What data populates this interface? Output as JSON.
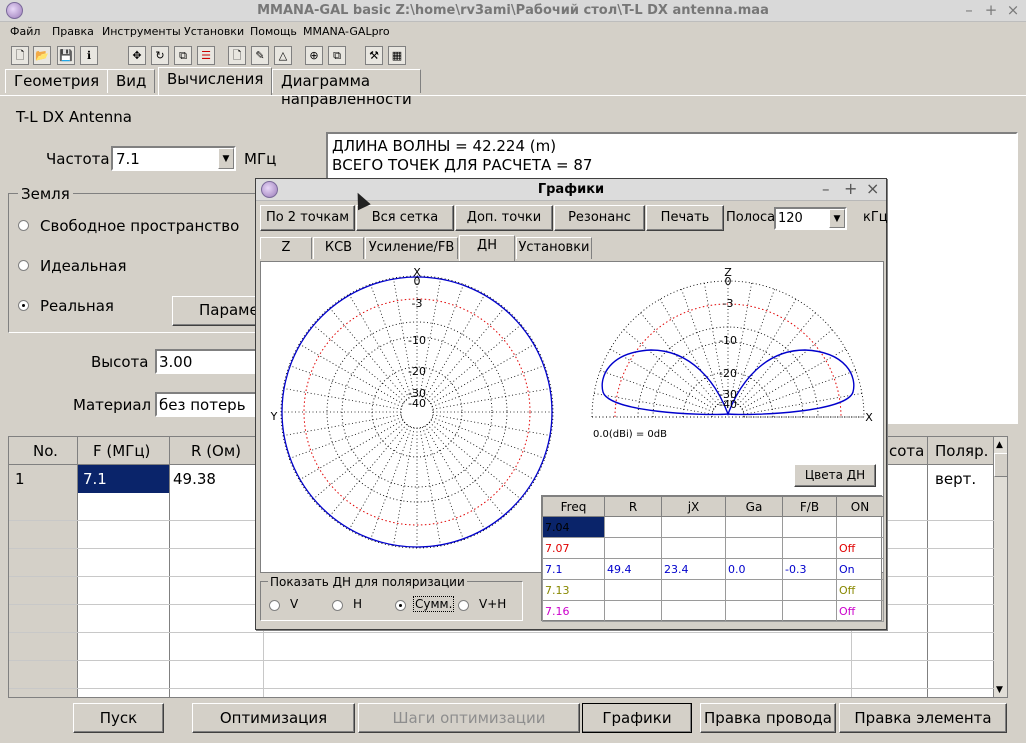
{
  "window": {
    "title": "MMANA-GAL basic Z:\\home\\rv3ami\\Рабочий стол\\T-L DX antenna.maa"
  },
  "menu": [
    "Файл",
    "Правка",
    "Инструменты",
    "Установки",
    "Помощь",
    "MMANA-GALpro"
  ],
  "tabs": [
    "Геометрия",
    "Вид",
    "Вычисления",
    "Диаграмма направленности"
  ],
  "main": {
    "antenna_name": "T-L DX Antenna",
    "freq_label": "Частота",
    "freq_value": "7.1",
    "freq_unit": "МГц",
    "ground_group": "Земля",
    "ground_options": [
      "Свободное пространство",
      "Идеальная",
      "Реальная"
    ],
    "params_button": "Параме",
    "height_label": "Высота",
    "height_value": "3.00",
    "material_label": "Материал",
    "material_value": "без потерь",
    "info_lines": [
      "ДЛИНА ВОЛНЫ = 42.224 (m)",
      "ВСЕГО ТОЧЕК ДЛЯ РАСЧЕТА = 87"
    ]
  },
  "results_table": {
    "headers": [
      "No.",
      "F (МГц)",
      "R (Ом)"
    ],
    "right_headers": [
      "сота",
      "Поляр."
    ],
    "row": {
      "no": "1",
      "f": "7.1",
      "r": "49.38",
      "pol": "верт."
    }
  },
  "bottom_buttons": [
    "Пуск",
    "Оптимизация",
    "Шаги оптимизации",
    "Графики",
    "Правка провода",
    "Правка элемента"
  ],
  "dialog": {
    "title": "Графики",
    "buttons": [
      "По 2 точкам",
      "Вся сетка",
      "Доп. точки",
      "Резонанс",
      "Печать"
    ],
    "band_label": "Полоса",
    "band_value": "120",
    "band_unit": "кГц",
    "tabs": [
      "Z",
      "КСВ",
      "Усиление/FB",
      "ДН",
      "Установки"
    ],
    "plot": {
      "left_axis_labels": {
        "top": "X",
        "left": "Y"
      },
      "right_axis_labels": {
        "top": "Z",
        "right": "X"
      },
      "ring_labels": [
        "0",
        "-3",
        "-10",
        "-20",
        "-30",
        "-40"
      ],
      "ref_text": "0.0(dBi) = 0dB"
    },
    "colors_button": "Цвета ДН",
    "polar_group": "Показать ДН для поляризации",
    "polar_options": [
      "V",
      "H",
      "Сумм.",
      "V+H"
    ],
    "table_headers": [
      "Freq",
      "R",
      "jX",
      "Ga",
      "F/B",
      "ON"
    ],
    "table_rows": [
      {
        "freq": "7.04",
        "r": "",
        "jx": "",
        "ga": "",
        "fb": "",
        "on": "Off",
        "color": "#ffffff"
      },
      {
        "freq": "7.07",
        "r": "",
        "jx": "",
        "ga": "",
        "fb": "",
        "on": "Off",
        "color": "#e00000"
      },
      {
        "freq": "7.1",
        "r": "49.4",
        "jx": "23.4",
        "ga": "0.0",
        "fb": "-0.3",
        "on": "On",
        "color": "#0000cc"
      },
      {
        "freq": "7.13",
        "r": "",
        "jx": "",
        "ga": "",
        "fb": "",
        "on": "Off",
        "color": "#888800"
      },
      {
        "freq": "7.16",
        "r": "",
        "jx": "",
        "ga": "",
        "fb": "",
        "on": "Off",
        "color": "#cc00cc"
      }
    ]
  }
}
